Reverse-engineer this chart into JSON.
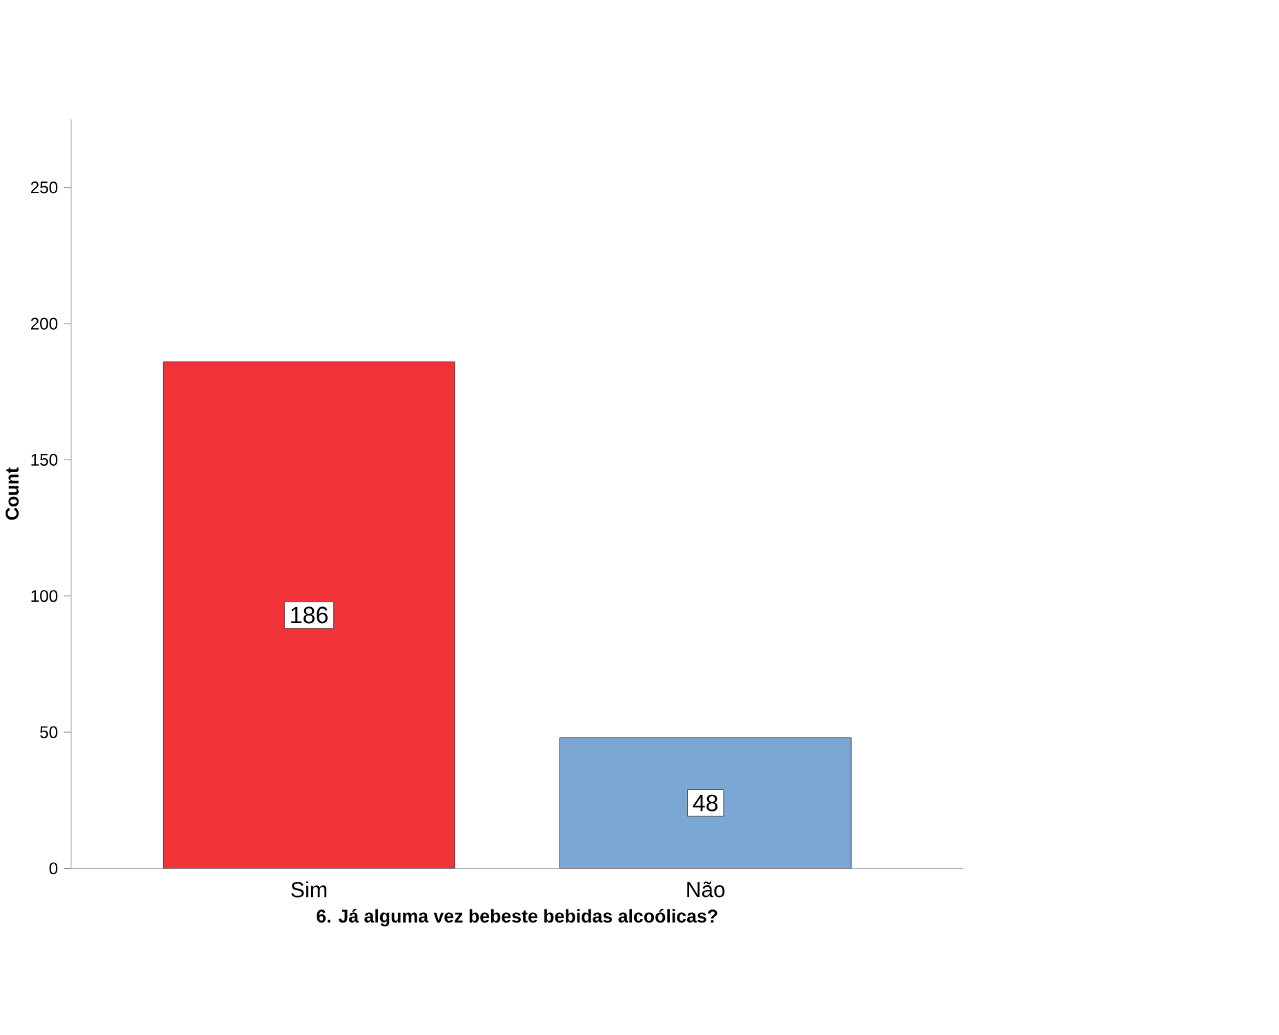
{
  "chart_data": {
    "type": "bar",
    "xlabel": "6. Já alguma vez bebeste bebidas alcoólicas?",
    "ylabel": "Count",
    "categories": [
      "Sim",
      "Não"
    ],
    "values": [
      186,
      48
    ],
    "colors": [
      "#ef3338",
      "#7ba7d4"
    ],
    "ylim": [
      0,
      275
    ],
    "yticks": [
      0,
      50,
      100,
      150,
      200,
      250
    ],
    "data_labels": true,
    "grid": false
  }
}
